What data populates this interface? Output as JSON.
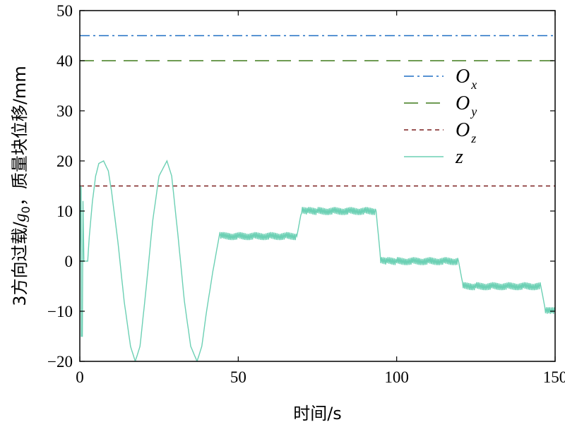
{
  "chart_data": {
    "type": "line",
    "xlabel": "时间/s",
    "ylabel": "3方向过载/g0，质量块位移/mm",
    "ylabel_parts": {
      "before": "3方向过载/",
      "g": "g",
      "g_sub": "0",
      "after": "，质量块位移/mm"
    },
    "xlim": [
      0,
      150
    ],
    "ylim": [
      -20,
      50
    ],
    "x_ticks": [
      0,
      50,
      100,
      150
    ],
    "y_ticks": [
      -20,
      -10,
      0,
      10,
      20,
      30,
      40,
      50
    ],
    "x_tick_labels": [
      "0",
      "50",
      "100",
      "150"
    ],
    "y_tick_labels": [
      "−20",
      "−10",
      "0",
      "10",
      "20",
      "30",
      "40",
      "50"
    ],
    "grid": false,
    "legend_position": "right",
    "series": [
      {
        "name": "Ox",
        "label_main": "O",
        "label_sub": "x",
        "color": "#1f6fc4",
        "style": "dashdot",
        "x": [
          0,
          150
        ],
        "y": [
          45,
          45
        ]
      },
      {
        "name": "Oy",
        "label_main": "O",
        "label_sub": "y",
        "color": "#3f7a1a",
        "style": "dashed",
        "x": [
          0,
          150
        ],
        "y": [
          40,
          40
        ]
      },
      {
        "name": "Oz",
        "label_main": "O",
        "label_sub": "z",
        "color": "#7a1f1f",
        "style": "dotted",
        "x": [
          0,
          150
        ],
        "y": [
          15,
          15
        ]
      },
      {
        "name": "z",
        "label_main": "z",
        "label_sub": "",
        "color": "#6cd0b4",
        "style": "solid",
        "x": [
          0,
          0.4,
          0.5,
          0.8,
          1.0,
          1.3,
          1.5,
          2,
          2.5,
          3,
          4,
          5,
          6,
          7.5,
          9,
          10,
          12,
          14,
          16,
          17.5,
          19,
          21,
          23,
          25,
          27.5,
          29,
          31,
          33,
          35,
          37,
          38.5,
          40,
          42,
          44,
          45,
          50,
          55,
          60,
          65,
          68.5,
          70,
          72,
          75,
          80,
          85,
          90,
          93.5,
          95,
          97,
          100,
          105,
          110,
          115,
          119.5,
          121,
          125,
          130,
          135,
          140,
          145.5,
          147,
          148,
          149,
          150
        ],
        "y": [
          0,
          15,
          -15,
          -15,
          12,
          0,
          0,
          0,
          0,
          5,
          12,
          17,
          19.5,
          20,
          18,
          14,
          4,
          -8,
          -17,
          -20,
          -17,
          -5,
          8,
          17,
          20,
          17,
          5,
          -8,
          -17,
          -20,
          -17,
          -10,
          -2,
          5,
          5,
          5,
          5,
          5,
          5,
          5,
          10,
          10,
          10,
          10,
          10,
          10,
          10,
          0,
          0,
          0,
          0,
          0,
          0,
          0,
          -5,
          -5,
          -5,
          -5,
          -5,
          -5,
          -10,
          -10,
          -10,
          -10
        ],
        "noise": 0.8
      }
    ]
  }
}
